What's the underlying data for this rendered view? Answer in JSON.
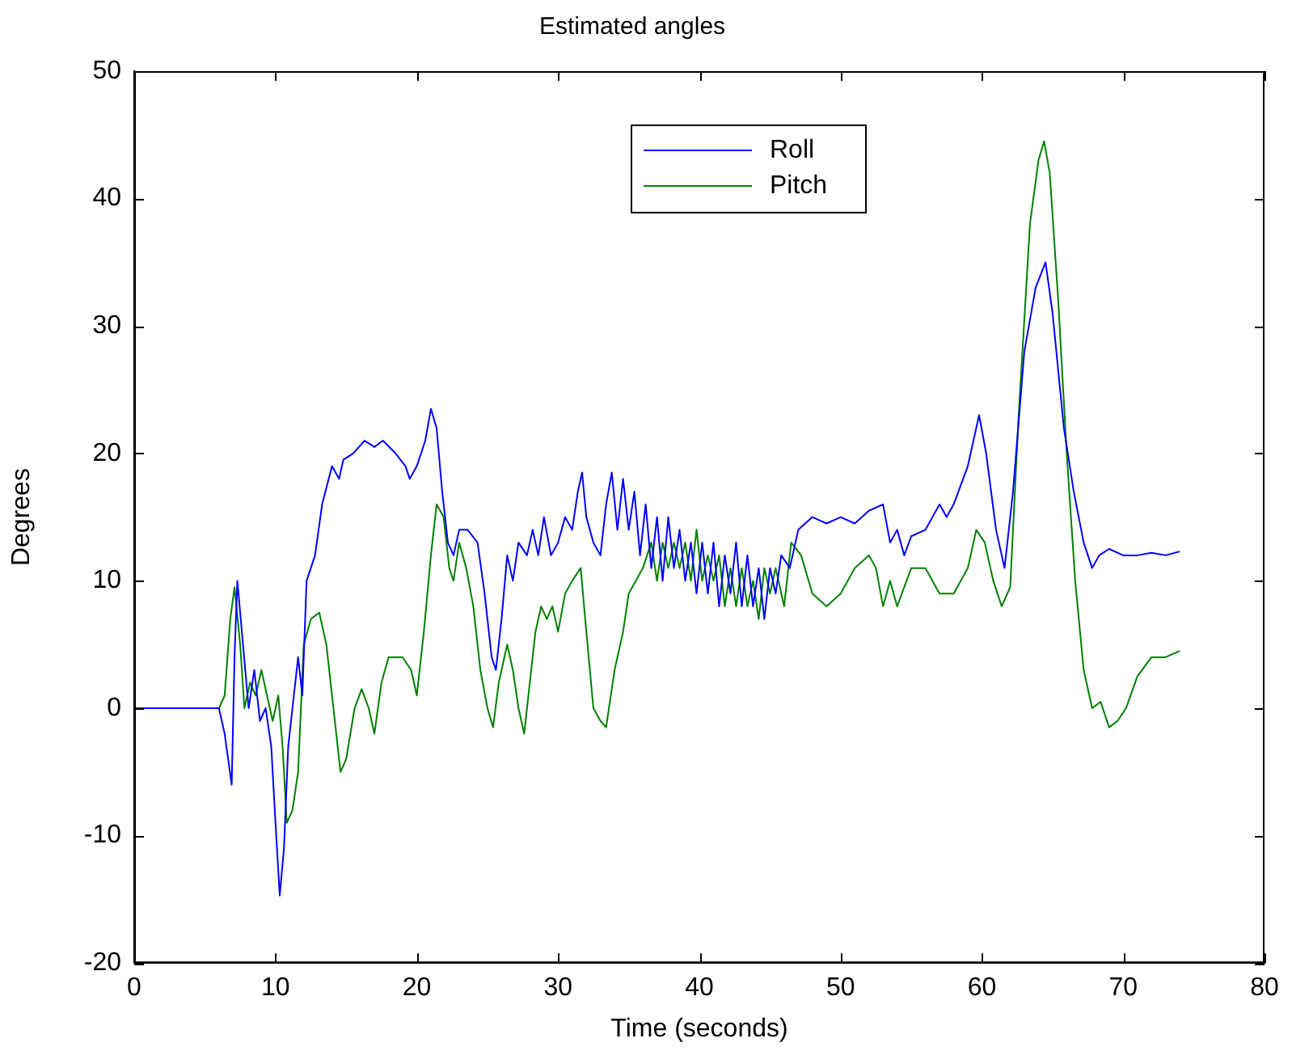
{
  "chart_data": {
    "type": "line",
    "title": "Estimated angles",
    "xlabel": "Time (seconds)",
    "ylabel": "Degrees",
    "xlim": [
      0,
      80
    ],
    "xticks": [
      0,
      10,
      20,
      30,
      40,
      50,
      60,
      70,
      80
    ],
    "ylim": [
      -20,
      50
    ],
    "yticks": [
      -20,
      -10,
      0,
      10,
      20,
      30,
      40,
      50
    ],
    "grid": false,
    "legend": "top",
    "marker": "none",
    "line_style": "solid",
    "series": [
      {
        "name": "Roll",
        "color": "#0000ff",
        "x": [
          0,
          6,
          6.4,
          6.9,
          7.1,
          7.3,
          7.7,
          8.1,
          8.5,
          8.9,
          9.3,
          9.7,
          10.0,
          10.3,
          10.6,
          10.9,
          11.3,
          11.6,
          11.9,
          12.2,
          12.8,
          13.3,
          14.0,
          14.5,
          14.8,
          15.5,
          16.3,
          17.0,
          17.6,
          18.5,
          19.2,
          19.5,
          20.0,
          20.6,
          21.0,
          21.4,
          21.8,
          22.2,
          22.6,
          23.0,
          23.6,
          24.3,
          24.8,
          25.3,
          25.6,
          26.0,
          26.4,
          26.8,
          27.2,
          27.8,
          28.2,
          28.6,
          29.0,
          29.5,
          30.0,
          30.5,
          31.0,
          31.4,
          31.7,
          32.0,
          32.5,
          33.0,
          33.4,
          33.8,
          34.2,
          34.6,
          35.0,
          35.4,
          35.8,
          36.2,
          36.6,
          37.0,
          37.4,
          37.8,
          38.2,
          38.6,
          39.0,
          39.4,
          39.8,
          40.2,
          40.6,
          41.0,
          41.4,
          41.8,
          42.2,
          42.6,
          43.0,
          43.4,
          43.8,
          44.2,
          44.6,
          45.0,
          45.4,
          45.8,
          46.4,
          47,
          48,
          49,
          50,
          51,
          52,
          53,
          53.5,
          54,
          54.5,
          55,
          56,
          57,
          57.5,
          58,
          59,
          59.8,
          60.3,
          61,
          61.6,
          62.2,
          63,
          63.8,
          64.5,
          65,
          65.8,
          66.5,
          67.2,
          67.8,
          68.3,
          69,
          70,
          71,
          72,
          73,
          74
        ],
        "values": [
          0,
          0,
          -2,
          -6,
          4,
          10,
          5,
          0,
          3,
          -1,
          0,
          -3,
          -9,
          -14.7,
          -11,
          -3,
          1,
          4,
          1,
          10,
          12,
          16,
          19,
          18,
          19.5,
          20,
          21,
          20.5,
          21,
          20,
          19,
          18,
          19,
          21,
          23.5,
          22,
          17,
          13,
          12,
          14,
          14,
          13,
          9,
          4,
          3,
          7,
          12,
          10,
          13,
          12,
          14,
          12,
          15,
          12,
          13,
          15,
          14,
          17,
          18.5,
          15,
          13,
          12,
          16,
          18.5,
          14,
          18,
          14,
          17,
          12,
          16,
          11,
          15,
          10,
          15,
          11,
          14,
          10,
          13,
          9,
          13,
          9,
          13,
          8,
          12,
          9,
          13,
          8,
          12,
          8,
          11,
          7,
          11,
          9,
          12,
          11,
          14,
          15,
          14.5,
          15,
          14.5,
          15.5,
          16,
          13,
          14,
          12,
          13.5,
          14,
          16,
          15,
          16,
          19,
          23,
          20,
          14,
          11,
          17,
          28,
          33,
          35,
          31,
          22,
          17,
          13,
          11,
          12,
          12.5,
          12,
          12,
          12.2,
          12,
          12.3
        ]
      },
      {
        "name": "Pitch",
        "color": "#008000",
        "x": [
          0,
          6,
          6.4,
          6.8,
          7.1,
          7.5,
          7.8,
          8.2,
          8.6,
          9.0,
          9.4,
          9.8,
          10.2,
          10.5,
          10.8,
          11.2,
          11.6,
          12.0,
          12.5,
          13.1,
          13.6,
          14.1,
          14.6,
          15.0,
          15.6,
          16.1,
          16.6,
          17.0,
          17.5,
          18.0,
          19.0,
          19.6,
          20.0,
          20.5,
          21.0,
          21.4,
          21.9,
          22.3,
          22.6,
          23.0,
          23.5,
          24.0,
          24.5,
          25.0,
          25.4,
          25.8,
          26.4,
          26.8,
          27.2,
          27.6,
          28.0,
          28.4,
          28.8,
          29.2,
          29.6,
          30.0,
          30.5,
          31.0,
          31.6,
          32.0,
          32.5,
          33.0,
          33.4,
          34.0,
          34.6,
          35.0,
          35.5,
          36.0,
          36.6,
          37.0,
          37.4,
          37.8,
          38.2,
          38.6,
          39.0,
          39.4,
          39.8,
          40.2,
          40.6,
          41.0,
          41.4,
          41.8,
          42.2,
          42.6,
          43.0,
          43.4,
          43.8,
          44.2,
          44.6,
          45.0,
          45.4,
          46.0,
          46.5,
          47.2,
          48,
          49,
          50,
          50.5,
          51,
          52,
          52.5,
          53,
          53.5,
          54,
          55,
          56,
          56.5,
          57,
          58,
          59,
          59.6,
          60.2,
          60.8,
          61.4,
          62,
          62.6,
          63.4,
          64.0,
          64.4,
          64.8,
          65.4,
          66,
          66.6,
          67.2,
          67.8,
          68.4,
          69,
          69.6,
          70.2,
          71,
          72,
          73,
          74
        ],
        "values": [
          0,
          0,
          1,
          7,
          9.5,
          5,
          0,
          2,
          1,
          3,
          1,
          -1,
          1,
          -3,
          -9,
          -8,
          -5,
          5,
          7,
          7.5,
          5,
          0,
          -5,
          -4,
          0,
          1.5,
          0,
          -2,
          2,
          4,
          4,
          3,
          1,
          6,
          12,
          16,
          15,
          11,
          10,
          13,
          11,
          8,
          3,
          0,
          -1.5,
          2,
          5,
          3,
          0,
          -2,
          2,
          6,
          8,
          7,
          8,
          6,
          9,
          10,
          11,
          6,
          0,
          -1,
          -1.5,
          3,
          6,
          9,
          10,
          11,
          13,
          10,
          13,
          11,
          13,
          11,
          13,
          10,
          14,
          10,
          12,
          10,
          12,
          8,
          11,
          8,
          11,
          8,
          10,
          7,
          11,
          9,
          11,
          8,
          13,
          12,
          9,
          8,
          9,
          10,
          11,
          12,
          11,
          8,
          10,
          8,
          11,
          11,
          10,
          9,
          9,
          11,
          14,
          13,
          10,
          8,
          9.5,
          23,
          38,
          43,
          44.5,
          42,
          32,
          20,
          10,
          3,
          0,
          0.5,
          -1.5,
          -1,
          0,
          2.5,
          4,
          4,
          4.5
        ]
      }
    ]
  }
}
